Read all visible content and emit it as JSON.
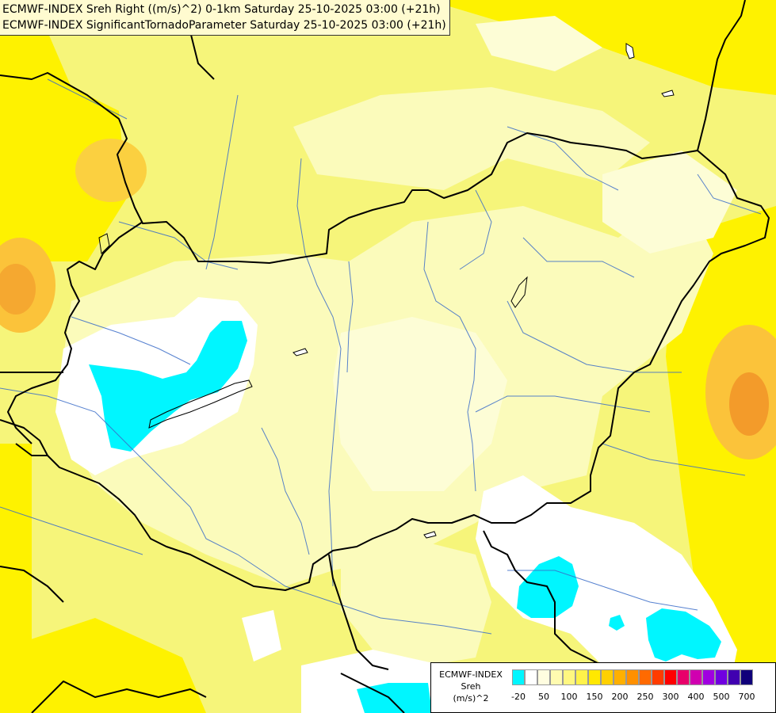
{
  "title_lines": [
    "ECMWF-INDEX Sreh Right ((m/s)^2) 0-1km Saturday 25-10-2025 03:00 (+21h)",
    "ECMWF-INDEX SignificantTornadoParameter Saturday 25-10-2025 03:00 (+21h)"
  ],
  "legend": {
    "title_line1": "ECMWF-INDEX",
    "title_line2": "Sreh",
    "title_line3": "(m/s)^2",
    "colors": [
      "#00f6ff",
      "#ffffff",
      "#fffde0",
      "#fffbb0",
      "#fff780",
      "#fff24a",
      "#ffe800",
      "#ffd000",
      "#ffb000",
      "#ff9000",
      "#ff6a00",
      "#ff3c00",
      "#ff0000",
      "#e8006a",
      "#d000b0",
      "#a000e0",
      "#7000e0",
      "#4000b0",
      "#10007a"
    ],
    "ticks": [
      "-20",
      "50",
      "100",
      "150",
      "200",
      "250",
      "300",
      "400",
      "500",
      "700"
    ]
  },
  "colors": {
    "bg_yellow": "#f6f57a",
    "pale": "#fbfbbb",
    "paler": "#fdfdd6",
    "white": "#ffffff",
    "cyan": "#00f6ff",
    "bright_yellow": "#fef200",
    "orange": "#fbc33a",
    "dark_orange": "#f39b2a",
    "border": "#000000",
    "river": "#3a6cc8"
  }
}
